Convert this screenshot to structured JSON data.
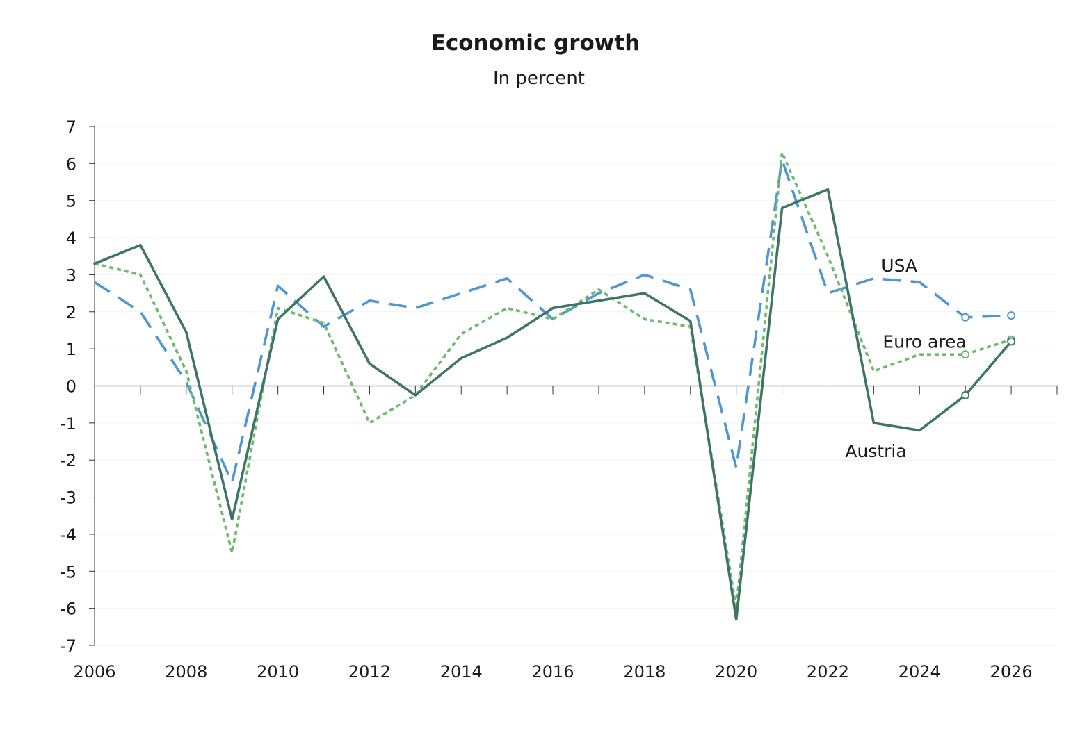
{
  "chart_data": {
    "type": "line",
    "title": "Economic growth",
    "subtitle": "In percent",
    "xlabel": "",
    "ylabel": "",
    "x": [
      2006,
      2007,
      2008,
      2009,
      2010,
      2011,
      2012,
      2013,
      2014,
      2015,
      2016,
      2017,
      2018,
      2019,
      2020,
      2021,
      2022,
      2023,
      2024,
      2025,
      2026
    ],
    "xlim": [
      2006,
      2027
    ],
    "ylim": [
      -7,
      7
    ],
    "x_ticks": [
      "2006",
      "2008",
      "2010",
      "2012",
      "2014",
      "2016",
      "2018",
      "2020",
      "2022",
      "2024",
      "2026"
    ],
    "y_ticks": [
      "7",
      "6",
      "5",
      "4",
      "3",
      "2",
      "1",
      "0",
      "-1",
      "-2",
      "-3",
      "-4",
      "-5",
      "-6",
      "-7"
    ],
    "grid": true,
    "legend": "inline labels",
    "forecast_markers_from": 2025,
    "series": [
      {
        "name": "Austria",
        "color": "#3f7566",
        "style": "solid",
        "values": [
          3.3,
          3.8,
          1.45,
          -3.6,
          1.8,
          2.95,
          0.6,
          -0.25,
          0.75,
          1.3,
          2.1,
          2.3,
          2.5,
          1.75,
          -6.3,
          4.8,
          5.3,
          -1.0,
          -1.2,
          -0.25,
          1.2
        ]
      },
      {
        "name": "Euro area",
        "color": "#6dba6a",
        "style": "dotted",
        "values": [
          3.3,
          3.0,
          0.4,
          -4.5,
          2.1,
          1.7,
          -1.0,
          -0.25,
          1.4,
          2.1,
          1.8,
          2.6,
          1.8,
          1.6,
          -6.0,
          6.3,
          3.5,
          0.4,
          0.85,
          0.85,
          1.25
        ]
      },
      {
        "name": "USA",
        "color": "#4f97d0",
        "style": "dashed",
        "values": [
          2.8,
          2.0,
          0.1,
          -2.6,
          2.7,
          1.6,
          2.3,
          2.1,
          2.5,
          2.9,
          1.8,
          2.5,
          3.0,
          2.6,
          -2.2,
          6.1,
          2.5,
          2.9,
          2.8,
          1.85,
          1.9
        ]
      }
    ]
  }
}
